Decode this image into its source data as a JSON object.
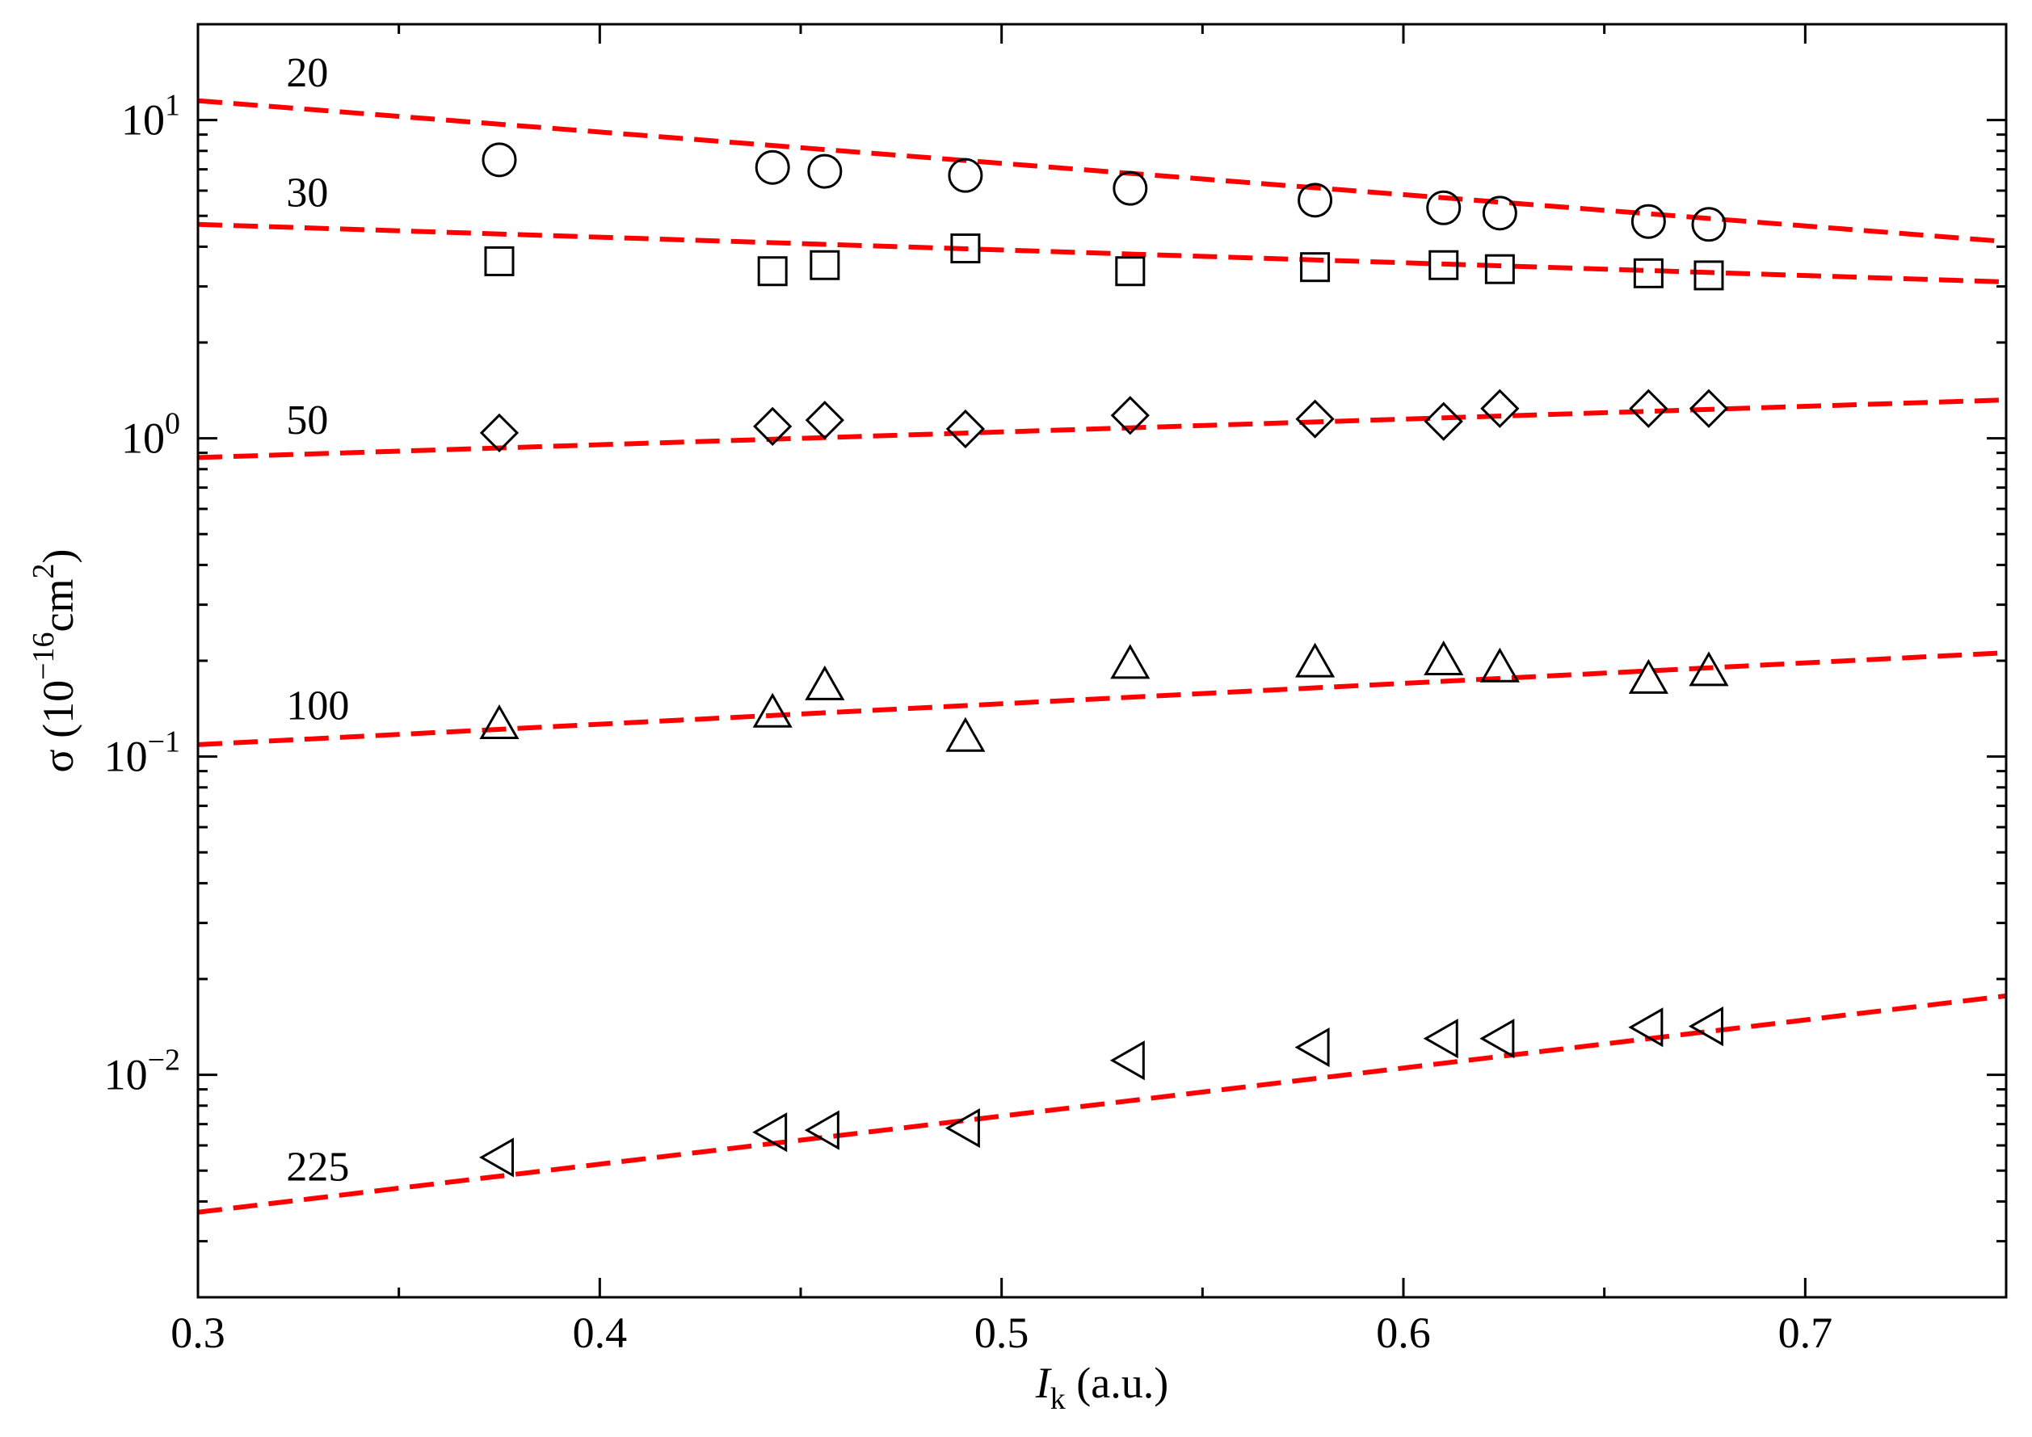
{
  "chart_data": {
    "type": "scatter",
    "x_scale": "linear",
    "y_scale": "log",
    "xlim": [
      0.3,
      0.75
    ],
    "ylim": [
      0.002,
      20
    ],
    "x_ticks": [
      {
        "value": 0.3,
        "label": "0.3"
      },
      {
        "value": 0.4,
        "label": "0.4"
      },
      {
        "value": 0.5,
        "label": "0.5"
      },
      {
        "value": 0.6,
        "label": "0.6"
      },
      {
        "value": 0.7,
        "label": "0.7"
      }
    ],
    "y_ticks": [
      {
        "value": 0.01,
        "base": "10",
        "exp": "−2"
      },
      {
        "value": 0.1,
        "base": "10",
        "exp": "−1"
      },
      {
        "value": 1,
        "base": "10",
        "exp": "0"
      },
      {
        "value": 10,
        "base": "10",
        "exp": "1"
      }
    ],
    "xlabel": {
      "italic": "I",
      "sub": "k",
      "rest": " (a.u.)"
    },
    "ylabel": {
      "pre": "σ (10",
      "sup1": "−16",
      "mid": "cm",
      "sup2": "2",
      "post": ")"
    },
    "fit_color": "#ff0000",
    "marker_color": "#000000",
    "series": [
      {
        "name": "20",
        "marker": "circle",
        "x": [
          0.375,
          0.443,
          0.456,
          0.491,
          0.532,
          0.578,
          0.61,
          0.624,
          0.661,
          0.676
        ],
        "y": [
          7.5,
          7.1,
          6.9,
          6.7,
          6.1,
          5.6,
          5.3,
          5.1,
          4.8,
          4.7
        ],
        "fit": {
          "x": [
            0.3,
            0.75
          ],
          "y": [
            11.5,
            4.15
          ]
        }
      },
      {
        "name": "30",
        "marker": "square",
        "x": [
          0.375,
          0.443,
          0.456,
          0.491,
          0.532,
          0.578,
          0.61,
          0.624,
          0.661,
          0.676
        ],
        "y": [
          3.6,
          3.35,
          3.5,
          3.95,
          3.35,
          3.45,
          3.5,
          3.4,
          3.3,
          3.25
        ],
        "fit": {
          "x": [
            0.3,
            0.75
          ],
          "y": [
            4.7,
            3.1
          ]
        }
      },
      {
        "name": "50",
        "marker": "diamond",
        "x": [
          0.375,
          0.443,
          0.456,
          0.491,
          0.532,
          0.578,
          0.61,
          0.624,
          0.661,
          0.676
        ],
        "y": [
          1.04,
          1.09,
          1.14,
          1.07,
          1.18,
          1.15,
          1.13,
          1.24,
          1.24,
          1.24
        ],
        "fit": {
          "x": [
            0.3,
            0.75
          ],
          "y": [
            0.87,
            1.32
          ]
        }
      },
      {
        "name": "100",
        "marker": "triangle-up",
        "x": [
          0.375,
          0.443,
          0.456,
          0.491,
          0.532,
          0.578,
          0.61,
          0.624,
          0.661,
          0.676
        ],
        "y": [
          0.126,
          0.137,
          0.167,
          0.115,
          0.195,
          0.197,
          0.2,
          0.19,
          0.175,
          0.185
        ],
        "fit": {
          "x": [
            0.3,
            0.75
          ],
          "y": [
            0.109,
            0.212
          ]
        }
      },
      {
        "name": "225",
        "marker": "triangle-left",
        "x": [
          0.375,
          0.443,
          0.456,
          0.491,
          0.532,
          0.578,
          0.61,
          0.624,
          0.661,
          0.676
        ],
        "y": [
          0.0055,
          0.0066,
          0.0067,
          0.0068,
          0.0111,
          0.0122,
          0.013,
          0.013,
          0.0141,
          0.0142
        ],
        "fit": {
          "x": [
            0.3,
            0.75
          ],
          "y": [
            0.0037,
            0.0177
          ]
        }
      }
    ]
  }
}
